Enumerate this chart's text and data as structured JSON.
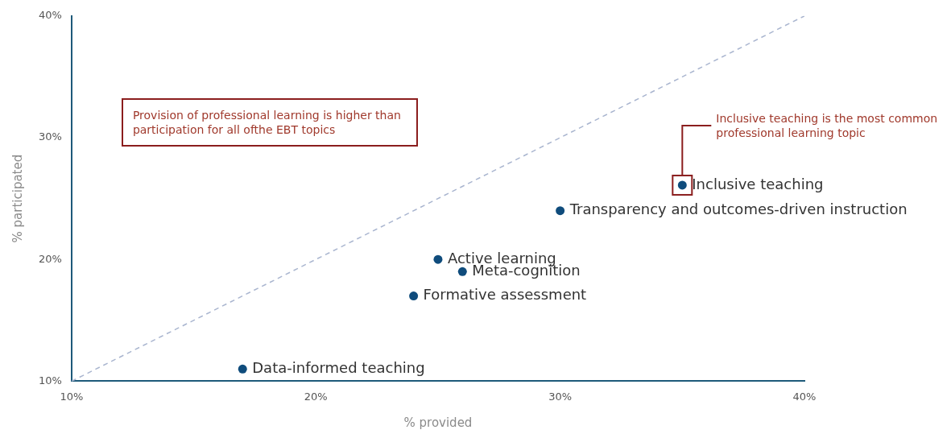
{
  "chart_data": {
    "type": "scatter",
    "xlabel": "% provided",
    "ylabel": "% participated",
    "xlim": [
      10,
      40
    ],
    "ylim": [
      10,
      40
    ],
    "xticks": [
      {
        "value": 10,
        "label": "10%"
      },
      {
        "value": 20,
        "label": "20%"
      },
      {
        "value": 30,
        "label": "30%"
      },
      {
        "value": 40,
        "label": "40%"
      }
    ],
    "yticks": [
      {
        "value": 10,
        "label": "10%"
      },
      {
        "value": 20,
        "label": "20%"
      },
      {
        "value": 30,
        "label": "30%"
      },
      {
        "value": 40,
        "label": "40%"
      }
    ],
    "grid": false,
    "legend": false,
    "marker": "circle",
    "series": [
      {
        "type": "line",
        "color": "#a9b5cf",
        "x": [
          10,
          40
        ],
        "values": [
          10,
          40
        ],
        "line_style": "dashed",
        "marker": "none"
      },
      {
        "name": "Inclusive teaching",
        "color": "#0f4c7c",
        "x": [
          35
        ],
        "values": [
          26.1
        ]
      },
      {
        "name": "Transparency and outcomes-driven instruction",
        "color": "#0f4c7c",
        "x": [
          30
        ],
        "values": [
          24
        ]
      },
      {
        "name": "Active learning",
        "color": "#0f4c7c",
        "x": [
          25
        ],
        "values": [
          20
        ]
      },
      {
        "name": "Meta-cognition",
        "color": "#0f4c7c",
        "x": [
          26
        ],
        "values": [
          19
        ]
      },
      {
        "name": "Formative assessment",
        "color": "#0f4c7c",
        "x": [
          24
        ],
        "values": [
          17
        ]
      },
      {
        "name": "Data-informed teaching",
        "color": "#0f4c7c",
        "x": [
          17
        ],
        "values": [
          11
        ]
      }
    ],
    "annotations": [
      "Provision of professional learning is higher than participation for all ofthe EBT topics",
      "Inclusive teaching is the most common professional learning topic"
    ]
  }
}
